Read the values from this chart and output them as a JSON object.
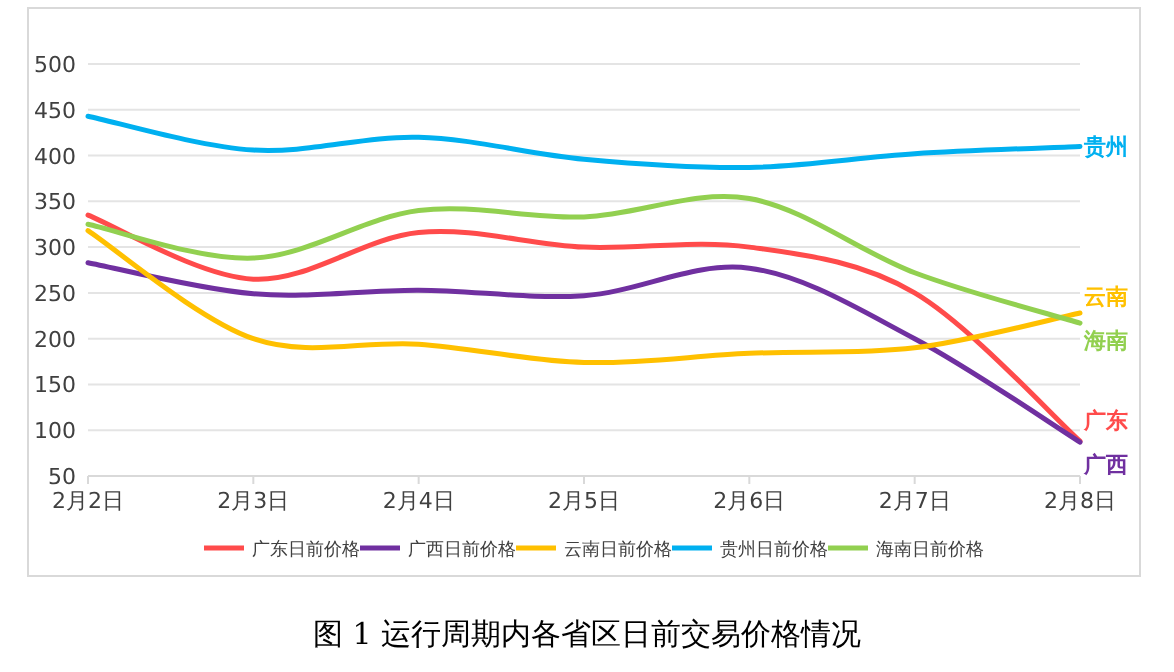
{
  "chart_data": {
    "type": "line",
    "title": "图 1 运行周期内各省区日前交易价格情况",
    "categories": [
      "2月2日",
      "2月3日",
      "2月4日",
      "2月5日",
      "2月6日",
      "2月7日",
      "2月8日"
    ],
    "series": [
      {
        "name": "广东日前价格",
        "color": "#ff4b4b",
        "values": [
          335,
          265,
          316,
          300,
          300,
          250,
          88
        ]
      },
      {
        "name": "广西日前价格",
        "color": "#7030a0",
        "values": [
          283,
          249,
          253,
          247,
          277,
          200,
          87
        ]
      },
      {
        "name": "云南日前价格",
        "color": "#ffc000",
        "values": [
          318,
          200,
          194,
          174,
          184,
          190,
          228
        ]
      },
      {
        "name": "贵州日前价格",
        "color": "#00b0f0",
        "values": [
          443,
          406,
          420,
          396,
          387,
          402,
          410
        ]
      },
      {
        "name": "海南日前价格",
        "color": "#92d050",
        "values": [
          325,
          288,
          340,
          333,
          353,
          272,
          217
        ]
      }
    ],
    "ylim": [
      50,
      500
    ],
    "yticks": [
      50,
      100,
      150,
      200,
      250,
      300,
      350,
      400,
      450,
      500
    ],
    "grid": "y",
    "legend": "bottom",
    "marker": "none",
    "line_style": "solid",
    "annotations": [
      "广东",
      "广西",
      "云南",
      "贵州",
      "海南"
    ]
  }
}
